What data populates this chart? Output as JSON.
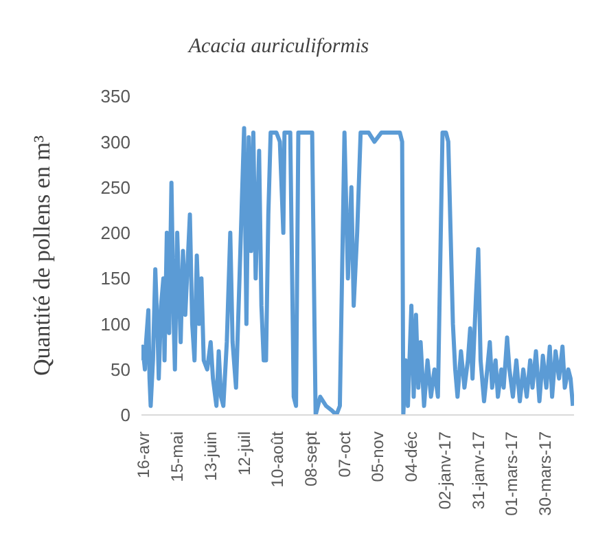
{
  "chart_data": {
    "type": "line",
    "title": "Acacia auriculiformis",
    "ylabel": "Quantité de pollens en m³",
    "xlim": [
      "2016-04-14",
      "2017-04-24"
    ],
    "xticks": [
      {
        "value": "2016-04-16",
        "label": "16-avr"
      },
      {
        "value": "2016-05-15",
        "label": "15-mai"
      },
      {
        "value": "2016-06-13",
        "label": "13-juin"
      },
      {
        "value": "2016-07-12",
        "label": "12-juil"
      },
      {
        "value": "2016-08-10",
        "label": "10-août"
      },
      {
        "value": "2016-09-08",
        "label": "08-sept"
      },
      {
        "value": "2016-10-07",
        "label": "07-oct"
      },
      {
        "value": "2016-11-05",
        "label": "05-nov"
      },
      {
        "value": "2016-12-04",
        "label": "04-déc"
      },
      {
        "value": "2017-01-02",
        "label": "02-janv-17"
      },
      {
        "value": "2017-01-31",
        "label": "31-janv-17"
      },
      {
        "value": "2017-03-01",
        "label": "01-mars-17"
      },
      {
        "value": "2017-03-30",
        "label": "30-mars-17"
      }
    ],
    "ylim": [
      0,
      350
    ],
    "yticks": [
      0,
      50,
      100,
      150,
      200,
      250,
      300,
      350
    ],
    "grid": false,
    "legend": false,
    "marker": "none",
    "line_style": "solid",
    "x": [
      "2016-04-14",
      "2016-04-15",
      "2016-04-17",
      "2016-04-18",
      "2016-04-20",
      "2016-04-21",
      "2016-04-22",
      "2016-04-24",
      "2016-04-26",
      "2016-04-28",
      "2016-04-29",
      "2016-05-01",
      "2016-05-03",
      "2016-05-04",
      "2016-05-06",
      "2016-05-08",
      "2016-05-10",
      "2016-05-12",
      "2016-05-13",
      "2016-05-15",
      "2016-05-17",
      "2016-05-18",
      "2016-05-20",
      "2016-05-22",
      "2016-05-26",
      "2016-05-28",
      "2016-05-30",
      "2016-06-01",
      "2016-06-03",
      "2016-06-05",
      "2016-06-07",
      "2016-06-10",
      "2016-06-13",
      "2016-06-15",
      "2016-06-18",
      "2016-06-20",
      "2016-06-22",
      "2016-06-24",
      "2016-06-27",
      "2016-06-30",
      "2016-07-02",
      "2016-07-05",
      "2016-07-08",
      "2016-07-12",
      "2016-07-14",
      "2016-07-16",
      "2016-07-18",
      "2016-07-20",
      "2016-07-22",
      "2016-07-25",
      "2016-07-27",
      "2016-07-29",
      "2016-07-31",
      "2016-08-02",
      "2016-08-04",
      "2016-08-09",
      "2016-08-12",
      "2016-08-15",
      "2016-08-16",
      "2016-08-21",
      "2016-08-24",
      "2016-08-26",
      "2016-08-28",
      "2016-09-09",
      "2016-09-11",
      "2016-09-12",
      "2016-09-16",
      "2016-09-21",
      "2016-09-26",
      "2016-09-30",
      "2016-10-03",
      "2016-10-07",
      "2016-10-10",
      "2016-10-13",
      "2016-10-15",
      "2016-10-18",
      "2016-10-21",
      "2016-10-28",
      "2016-11-02",
      "2016-11-08",
      "2016-11-24",
      "2016-11-26",
      "2016-11-27",
      "2016-11-29",
      "2016-12-01",
      "2016-12-04",
      "2016-12-06",
      "2016-12-08",
      "2016-12-10",
      "2016-12-12",
      "2016-12-15",
      "2016-12-18",
      "2016-12-21",
      "2016-12-24",
      "2016-12-27",
      "2016-12-31",
      "2017-01-03",
      "2017-01-05",
      "2017-01-07",
      "2017-01-09",
      "2017-01-11",
      "2017-01-13",
      "2017-01-16",
      "2017-01-19",
      "2017-01-22",
      "2017-01-24",
      "2017-01-26",
      "2017-01-29",
      "2017-01-31",
      "2017-02-02",
      "2017-02-05",
      "2017-02-07",
      "2017-02-10",
      "2017-02-12",
      "2017-02-15",
      "2017-02-17",
      "2017-02-20",
      "2017-02-22",
      "2017-02-25",
      "2017-02-27",
      "2017-03-02",
      "2017-03-05",
      "2017-03-08",
      "2017-03-11",
      "2017-03-14",
      "2017-03-17",
      "2017-03-19",
      "2017-03-22",
      "2017-03-25",
      "2017-03-28",
      "2017-03-31",
      "2017-04-03",
      "2017-04-05",
      "2017-04-08",
      "2017-04-11",
      "2017-04-14",
      "2017-04-16",
      "2017-04-19",
      "2017-04-21",
      "2017-04-23"
    ],
    "series": [
      {
        "color": "#5b9bd5",
        "values": [
          60,
          75,
          50,
          80,
          115,
          40,
          10,
          60,
          160,
          90,
          40,
          120,
          150,
          60,
          200,
          90,
          255,
          100,
          50,
          200,
          120,
          80,
          180,
          110,
          220,
          100,
          60,
          175,
          100,
          150,
          60,
          50,
          80,
          40,
          10,
          70,
          20,
          10,
          80,
          200,
          80,
          30,
          150,
          315,
          100,
          305,
          180,
          310,
          150,
          290,
          120,
          60,
          60,
          220,
          310,
          310,
          300,
          200,
          310,
          310,
          20,
          10,
          310,
          310,
          100,
          0,
          20,
          10,
          5,
          0,
          10,
          310,
          150,
          250,
          120,
          200,
          310,
          310,
          300,
          310,
          310,
          300,
          0,
          60,
          10,
          120,
          20,
          110,
          30,
          80,
          10,
          60,
          20,
          50,
          20,
          310,
          310,
          300,
          200,
          100,
          50,
          20,
          70,
          30,
          60,
          95,
          40,
          130,
          182,
          60,
          15,
          40,
          80,
          30,
          60,
          20,
          50,
          30,
          85,
          50,
          20,
          60,
          15,
          50,
          20,
          60,
          30,
          70,
          15,
          65,
          30,
          75,
          20,
          70,
          40,
          75,
          30,
          50,
          40,
          10
        ]
      }
    ]
  }
}
